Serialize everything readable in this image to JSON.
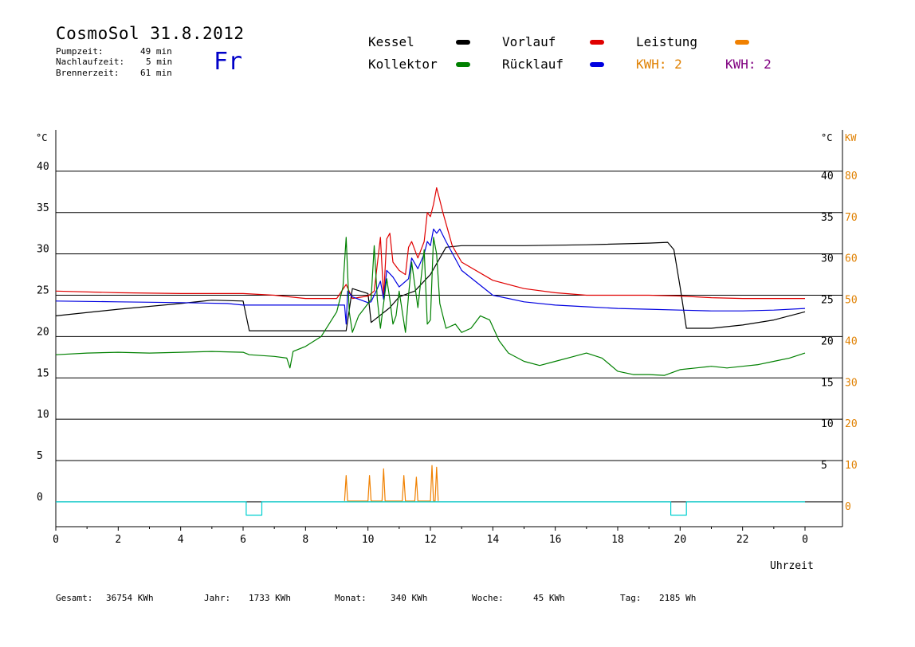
{
  "header": {
    "title": "CosmoSol 31.8.2012",
    "stats": [
      {
        "label": "Pumpzeit:",
        "value": "49 min"
      },
      {
        "label": "Nachlaufzeit:",
        "value": "5 min"
      },
      {
        "label": "Brennerzeit:",
        "value": "61 min"
      }
    ],
    "day": "Fr"
  },
  "legend": {
    "kessel": {
      "label": "Kessel",
      "color": "#000000"
    },
    "vorlauf": {
      "label": "Vorlauf",
      "color": "#e00000"
    },
    "leistung": {
      "label": "Leistung",
      "color": "#f08000"
    },
    "kollektor": {
      "label": "Kollektor",
      "color": "#008000"
    },
    "ruecklauf": {
      "label": "Rücklauf",
      "color": "#0000e0"
    },
    "kwh1": {
      "label": "KWH: 2",
      "color": "#e08000"
    },
    "kwh2": {
      "label": "KWH: 2",
      "color": "#800080"
    }
  },
  "footer": {
    "gesamt": {
      "label": "Gesamt:",
      "value": "36754 KWh"
    },
    "jahr": {
      "label": "Jahr:",
      "value": "1733 KWh"
    },
    "monat": {
      "label": "Monat:",
      "value": "340 KWh"
    },
    "woche": {
      "label": "Woche:",
      "value": "45 KWh"
    },
    "tag": {
      "label": "Tag:",
      "value": "2185 Wh"
    }
  },
  "chart_data": {
    "type": "line",
    "xlabel": "Uhrzeit",
    "ylabel_left": "°C",
    "ylabel_right_temp": "°C",
    "ylabel_right_power": "KW",
    "xlim": [
      0,
      24
    ],
    "ylim": [
      -3,
      45
    ],
    "x_ticks": [
      "0",
      "2",
      "4",
      "6",
      "8",
      "10",
      "12",
      "14",
      "16",
      "18",
      "20",
      "22",
      "0"
    ],
    "y_ticks_left": [
      "0",
      "5",
      "10",
      "15",
      "20",
      "25",
      "30",
      "35",
      "40"
    ],
    "y_ticks_right_temp": [
      "5",
      "10",
      "15",
      "20",
      "25",
      "30",
      "35",
      "40"
    ],
    "y_ticks_right_power": [
      "0",
      "10",
      "20",
      "30",
      "40",
      "50",
      "60",
      "70",
      "80"
    ],
    "grid": "horizontal",
    "series": [
      {
        "name": "Kessel",
        "key": "kessel",
        "color": "#000000",
        "x": [
          0,
          2,
          4,
          5,
          6,
          6.2,
          8,
          9,
          9.3,
          9.5,
          10,
          10.1,
          10.7,
          11,
          11.5,
          12,
          12.5,
          13,
          15,
          17,
          19,
          19.6,
          19.8,
          20,
          20.2,
          21,
          22,
          23,
          24
        ],
        "y": [
          22.5,
          23.3,
          24,
          24.4,
          24.3,
          20.7,
          20.7,
          20.7,
          20.7,
          25.8,
          25.2,
          21.7,
          23.5,
          24.8,
          25.5,
          27.5,
          30.8,
          31,
          31,
          31.1,
          31.3,
          31.4,
          30.5,
          26,
          21,
          21,
          21.4,
          22,
          23
        ]
      },
      {
        "name": "Vorlauf",
        "key": "vorlauf",
        "color": "#e00000",
        "x": [
          0,
          2,
          4,
          6,
          7,
          8,
          9,
          9.3,
          9.5,
          10,
          10.2,
          10.4,
          10.5,
          10.6,
          10.7,
          10.8,
          11,
          11.2,
          11.3,
          11.4,
          11.6,
          11.8,
          11.9,
          12,
          12.1,
          12.2,
          12.3,
          12.4,
          12.7,
          13,
          14,
          15,
          16,
          17,
          18,
          19,
          20,
          21,
          22,
          23,
          24
        ],
        "y": [
          25.5,
          25.3,
          25.2,
          25.2,
          25,
          24.6,
          24.6,
          26.3,
          24.6,
          24.9,
          25.5,
          32,
          24.8,
          31.8,
          32.5,
          29,
          28,
          27.5,
          30.8,
          31.5,
          29.5,
          31.5,
          35,
          34.5,
          36,
          38,
          36.5,
          35,
          31,
          29,
          26.8,
          25.8,
          25.3,
          25,
          25,
          25,
          24.9,
          24.7,
          24.6,
          24.6,
          24.6
        ]
      },
      {
        "name": "Rücklauf",
        "key": "ruecklauf",
        "color": "#0000e0",
        "x": [
          0,
          2,
          4,
          5.5,
          6,
          7,
          8,
          9,
          9.25,
          9.3,
          9.35,
          9.5,
          10,
          10.1,
          10.3,
          10.4,
          10.5,
          10.6,
          10.8,
          11,
          11.3,
          11.4,
          11.6,
          11.8,
          11.9,
          12,
          12.1,
          12.2,
          12.3,
          12.5,
          13,
          14,
          15,
          16,
          17,
          18,
          19,
          20,
          21,
          22,
          23,
          24
        ],
        "y": [
          24.3,
          24.2,
          24.1,
          24,
          23.8,
          23.8,
          23.8,
          23.8,
          23.8,
          21.5,
          25.5,
          24.8,
          24.1,
          24.2,
          25.8,
          26.7,
          24.5,
          28,
          27.2,
          26,
          27,
          29.5,
          28.2,
          30,
          31.5,
          31,
          33,
          32.5,
          33,
          31.5,
          28,
          25,
          24.2,
          23.8,
          23.6,
          23.4,
          23.3,
          23.2,
          23.1,
          23.1,
          23.2,
          23.4
        ]
      },
      {
        "name": "Kollektor",
        "key": "kollektor",
        "color": "#008000",
        "x": [
          0,
          1,
          2,
          3,
          4,
          5,
          6,
          6.2,
          7,
          7.4,
          7.5,
          7.6,
          8,
          8.5,
          9,
          9.2,
          9.3,
          9.4,
          9.5,
          9.7,
          9.9,
          10.1,
          10.2,
          10.3,
          10.4,
          10.5,
          10.6,
          10.7,
          10.8,
          10.9,
          11,
          11.2,
          11.3,
          11.4,
          11.6,
          11.8,
          11.9,
          12,
          12.1,
          12.2,
          12.3,
          12.5,
          12.8,
          13,
          13.3,
          13.6,
          13.9,
          14.2,
          14.5,
          15,
          15.5,
          16,
          16.5,
          17,
          17.5,
          18,
          18.5,
          19,
          19.5,
          20,
          20.5,
          21,
          21.5,
          22,
          22.5,
          23,
          23.5,
          24
        ],
        "y": [
          17.8,
          18,
          18.1,
          18,
          18.1,
          18.2,
          18.1,
          17.8,
          17.6,
          17.4,
          16.2,
          18.2,
          18.8,
          20,
          23,
          26,
          32,
          23,
          20.5,
          22.5,
          23.5,
          24.5,
          31,
          24.5,
          21,
          24,
          27,
          24.5,
          21.5,
          22.5,
          25.5,
          20.5,
          25,
          29,
          23.5,
          30.5,
          21.5,
          22,
          32,
          30,
          24,
          21,
          21.5,
          20.5,
          21,
          22.5,
          22,
          19.5,
          18,
          17,
          16.5,
          17,
          17.5,
          18,
          17.4,
          15.8,
          15.4,
          15.4,
          15.3,
          16,
          16.2,
          16.4,
          16.2,
          16.4,
          16.6,
          17,
          17.4,
          18
        ]
      },
      {
        "name": "Leistung",
        "key": "leistung",
        "color": "#f08000",
        "x": [
          9.25,
          9.3,
          9.35,
          10.0,
          10.05,
          10.1,
          10.45,
          10.5,
          10.55,
          11.1,
          11.15,
          11.2,
          11.5,
          11.55,
          11.6,
          12.0,
          12.05,
          12.1,
          12.15,
          12.2,
          12.25
        ],
        "y": [
          0.1,
          3.2,
          0.1,
          0.1,
          3.2,
          0.1,
          0.1,
          4.0,
          0.1,
          0.1,
          3.2,
          0.1,
          0.1,
          3.0,
          0.1,
          0.1,
          4.4,
          0.1,
          0.1,
          4.2,
          0.1
        ]
      },
      {
        "name": "Pumpe",
        "key": "pumpe",
        "color": "#00d0d0",
        "x": [
          0,
          6.1,
          6.1,
          6.6,
          6.6,
          19.7,
          19.7,
          20.2,
          20.2,
          24
        ],
        "y": [
          0,
          0,
          -1.6,
          -1.6,
          0,
          0,
          -1.6,
          -1.6,
          0,
          0
        ]
      }
    ]
  }
}
